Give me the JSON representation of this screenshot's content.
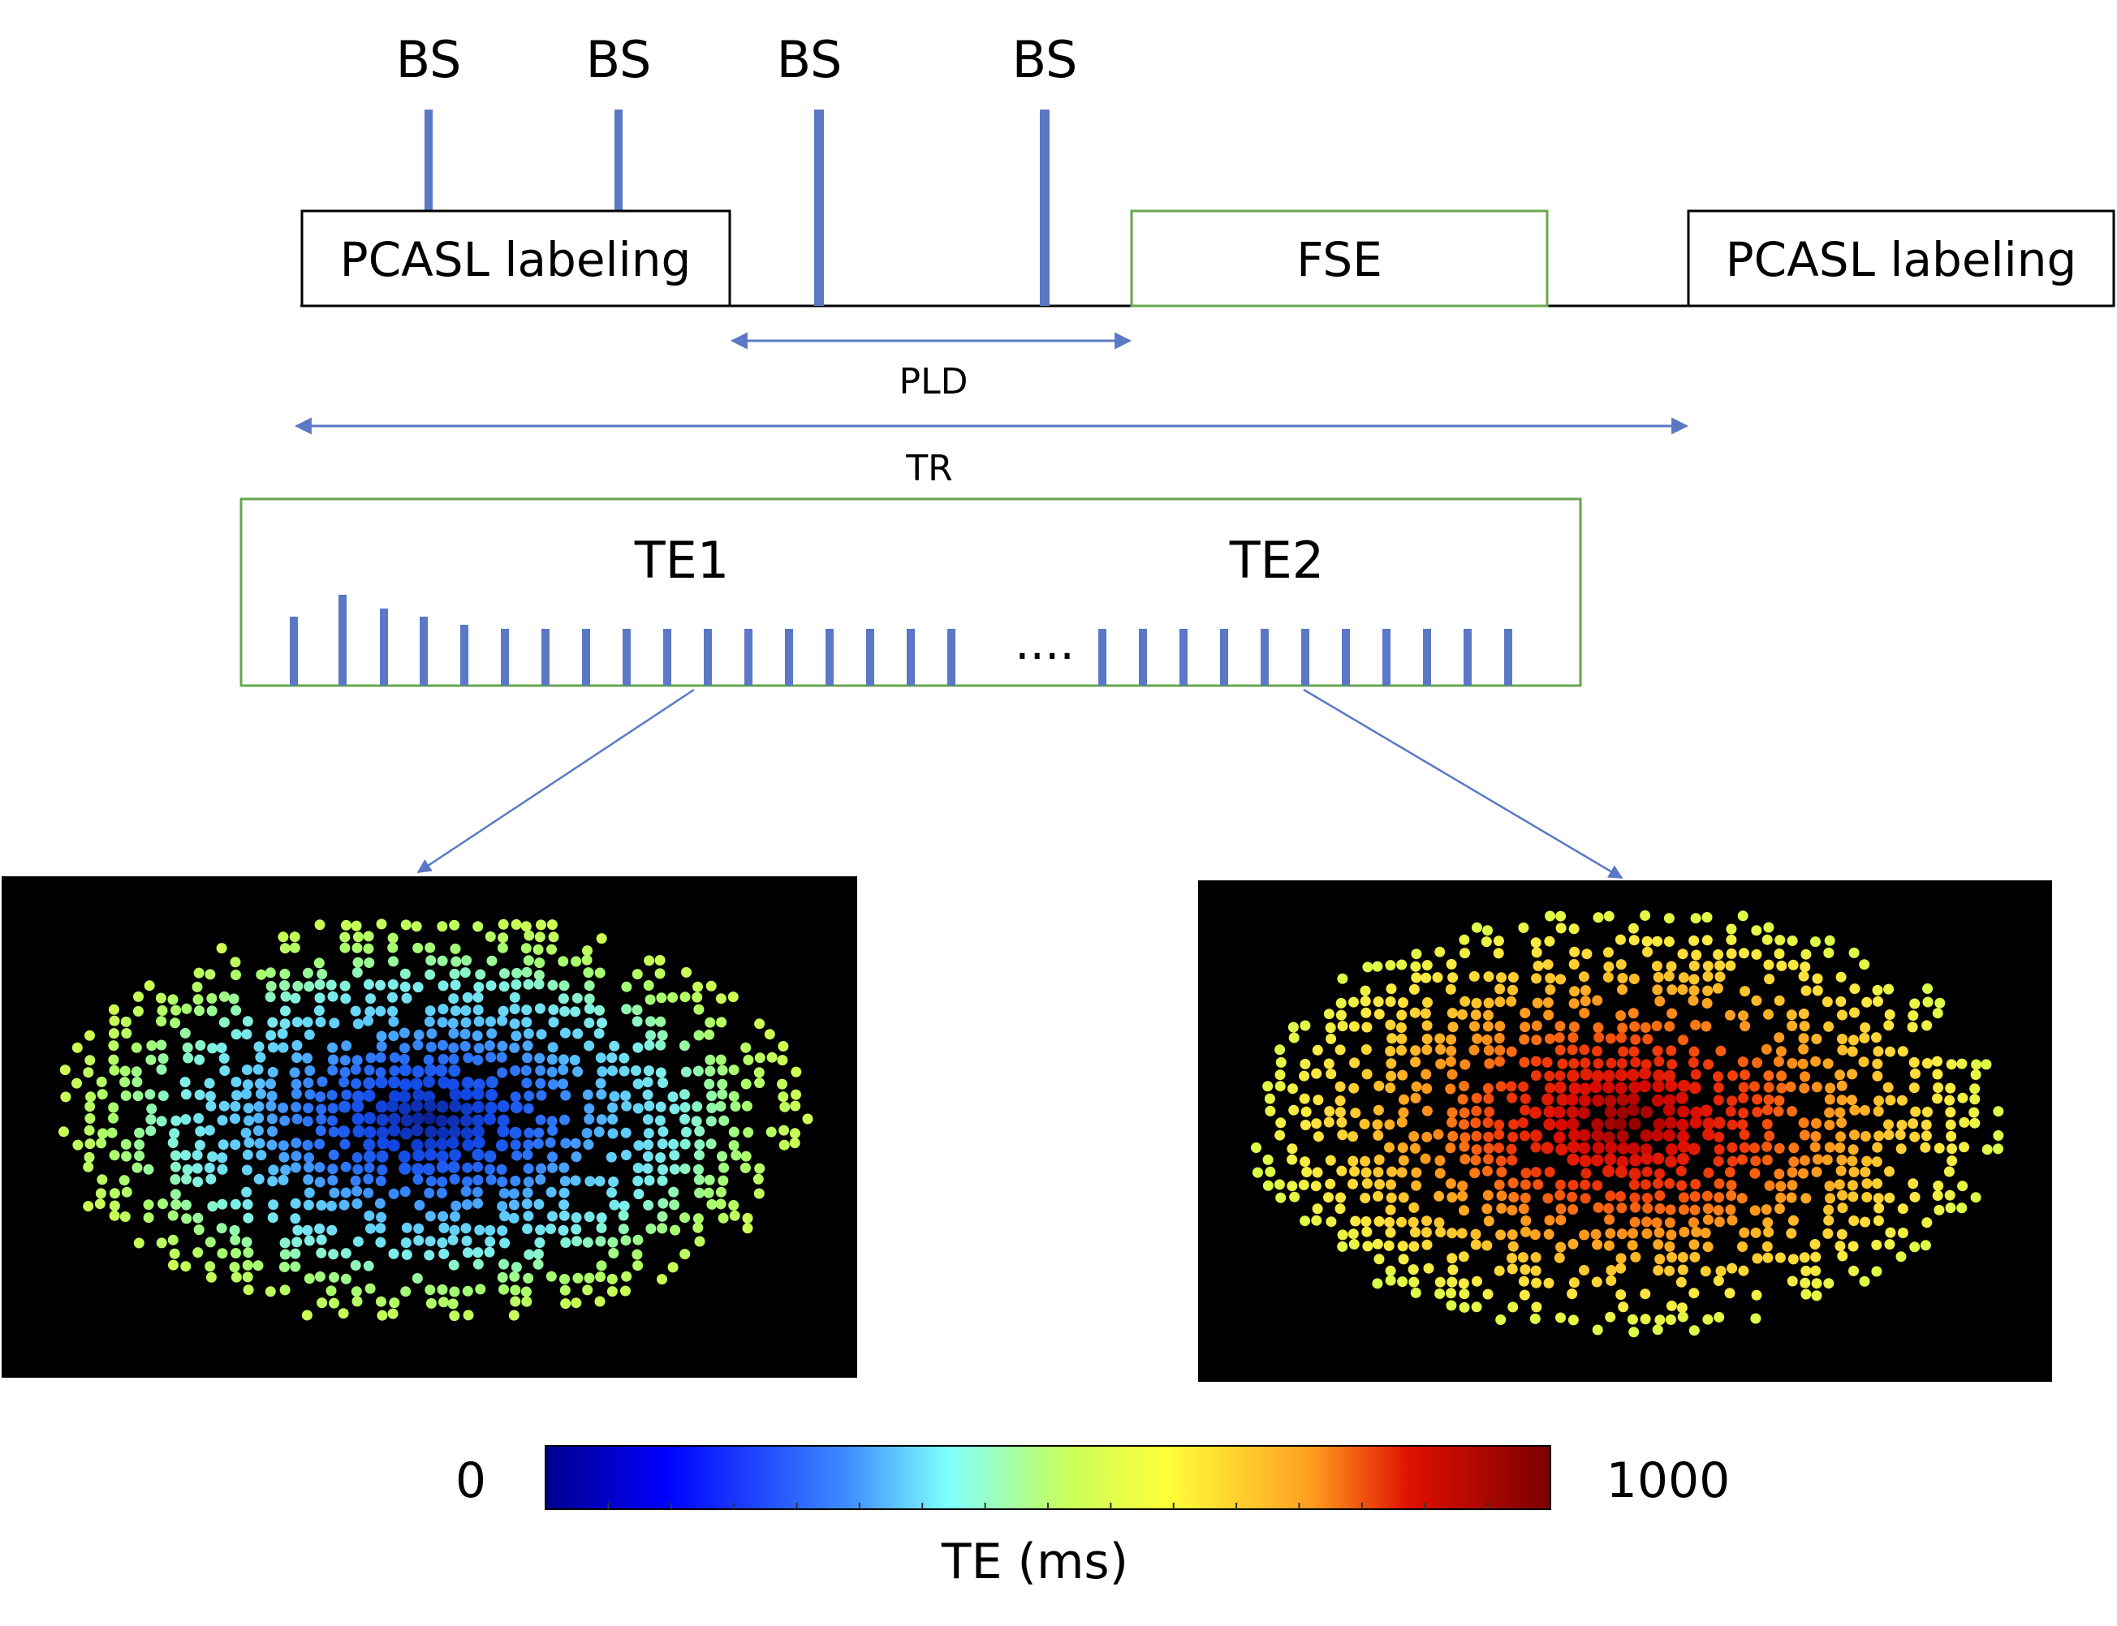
{
  "labels": {
    "bs": "BS",
    "pcasl": "PCASL labeling",
    "fse": "FSE",
    "pld": "PLD",
    "tr": "TR",
    "te1": "TE1",
    "te2": "TE2",
    "ellipsis": "....",
    "colorbar_min": "0",
    "colorbar_max": "1000",
    "colorbar_title": "TE (ms)"
  },
  "colors": {
    "pulse": "#5b78c6",
    "fse_border": "#67a64f",
    "arrow": "#5b78c6",
    "panel_bg": "#000000"
  },
  "echo_train": {
    "first_group_count": 17,
    "second_group_count": 11
  },
  "colorbar": {
    "min": 0,
    "max": 1000,
    "stops": [
      "#00008c",
      "#0000ff",
      "#3f8cff",
      "#7fffff",
      "#c8ff5a",
      "#ffff3a",
      "#ffa020",
      "#e01000",
      "#7a0000"
    ]
  }
}
